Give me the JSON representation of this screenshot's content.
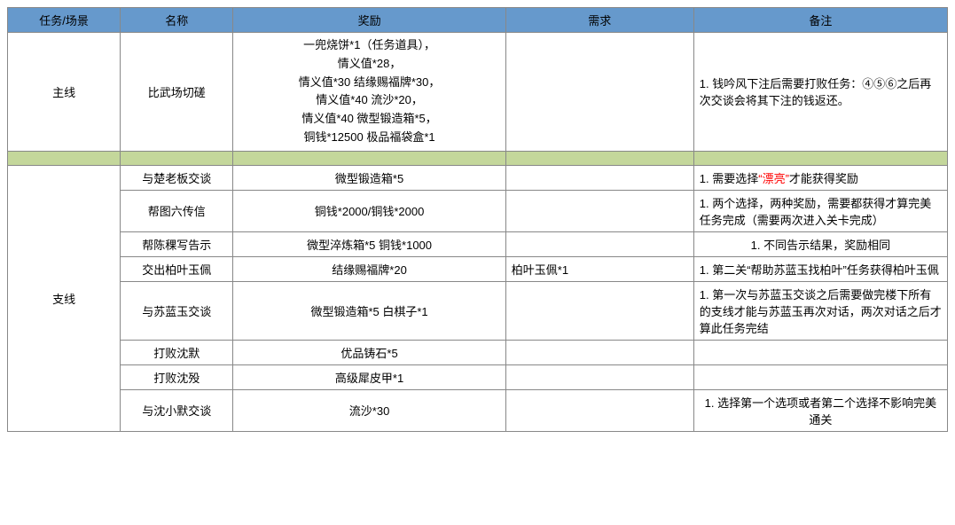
{
  "colors": {
    "header_bg": "#6699cc",
    "spacer_bg": "#c4d79b",
    "border": "#888888",
    "red_text": "#ff0000"
  },
  "columns": {
    "widths_pct": [
      12,
      12,
      29,
      20,
      27
    ],
    "headers": [
      "任务/场景",
      "名称",
      "奖励",
      "需求",
      "备注"
    ]
  },
  "mainline": {
    "category": "主线",
    "name": "比武场切磋",
    "reward_lines": [
      "一兜烧饼*1（任务道具），",
      "情义值*28，",
      "情义值*30  结缘赐福牌*30，",
      "情义值*40  流沙*20，",
      "情义值*40  微型锻造箱*5，",
      "铜钱*12500   极品福袋盒*1"
    ],
    "requirement": "",
    "note": "1. 钱吟风下注后需要打败任务：④⑤⑥之后再次交谈会将其下注的钱返还。"
  },
  "sideline": {
    "category": "支线",
    "rows": [
      {
        "name": "与楚老板交谈",
        "reward": "微型锻造箱*5",
        "requirement": "",
        "note_prefix": "1. 需要选择",
        "note_red": "“漂亮”",
        "note_suffix": "才能获得奖励"
      },
      {
        "name": "帮图六传信",
        "reward": "铜钱*2000/铜钱*2000",
        "requirement": "",
        "note": "1. 两个选择，两种奖励，需要都获得才算完美任务完成（需要两次进入关卡完成）"
      },
      {
        "name": "帮陈稞写告示",
        "reward": "微型淬炼箱*5    铜钱*1000",
        "requirement": "",
        "note": "1. 不同告示结果，奖励相同",
        "note_center": true
      },
      {
        "name": "交出柏叶玉佩",
        "reward": "结缘赐福牌*20",
        "requirement": "柏叶玉佩*1",
        "note": "1. 第二关“帮助苏蓝玉找柏叶”任务获得柏叶玉佩"
      },
      {
        "name": "与苏蓝玉交谈",
        "reward": "微型锻造箱*5    白棋子*1",
        "requirement": "",
        "note": "1. 第一次与苏蓝玉交谈之后需要做完楼下所有的支线才能与苏蓝玉再次对话，两次对话之后才算此任务完结"
      },
      {
        "name": "打败沈默",
        "reward": "优品铸石*5",
        "requirement": "",
        "note": ""
      },
      {
        "name": "打败沈殁",
        "reward": "高级犀皮甲*1",
        "requirement": "",
        "note": ""
      },
      {
        "name": "与沈小默交谈",
        "reward": "流沙*30",
        "requirement": "",
        "note": "1. 选择第一个选项或者第二个选择不影响完美通关",
        "note_center": true
      }
    ]
  }
}
